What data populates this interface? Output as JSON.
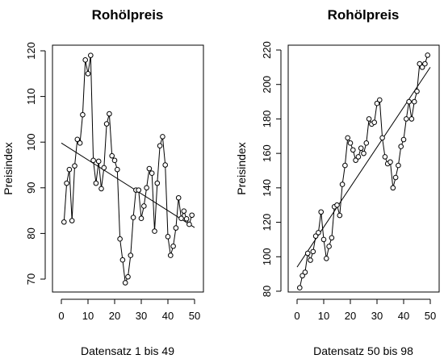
{
  "chart_data": [
    {
      "type": "line",
      "title": "Rohölpreis",
      "xlabel": "Datensatz 1 bis 49",
      "ylabel": "Preisindex",
      "xlim": [
        0,
        50
      ],
      "ylim": [
        70,
        120
      ],
      "xticks": [
        0,
        10,
        20,
        30,
        40,
        50
      ],
      "yticks": [
        70,
        80,
        90,
        100,
        110,
        120
      ],
      "grid": false,
      "series": [
        {
          "markers": "open-circle",
          "x": [
            1,
            2,
            3,
            4,
            5,
            6,
            7,
            8,
            9,
            10,
            11,
            12,
            13,
            14,
            15,
            16,
            17,
            18,
            19,
            20,
            21,
            22,
            23,
            24,
            25,
            26,
            27,
            28,
            29,
            30,
            31,
            32,
            33,
            34,
            35,
            36,
            37,
            38,
            39,
            40,
            41,
            42,
            43,
            44,
            45,
            46,
            47,
            48,
            49
          ],
          "y": [
            82.5,
            91,
            94,
            82.8,
            94.8,
            100.6,
            99.8,
            106,
            118,
            115,
            119,
            96,
            91,
            95.8,
            89.8,
            94.4,
            104,
            106.2,
            97,
            96,
            94,
            78.8,
            74.2,
            69.2,
            70.5,
            75.2,
            83.5,
            89.5,
            89.5,
            83.3,
            86,
            90,
            94.2,
            93.2,
            80.5,
            91,
            99.2,
            101.2,
            95,
            79.3,
            75.2,
            77.2,
            81.2,
            87.8,
            83.3,
            84.9,
            83.2,
            82,
            84
          ]
        }
      ],
      "trendline": {
        "x": [
          0,
          50
        ],
        "y": [
          99.8,
          81.3
        ]
      }
    },
    {
      "type": "line",
      "title": "Rohölpreis",
      "xlabel": "Datensatz 50 bis 98",
      "ylabel": "Preisindex",
      "xlim": [
        0,
        50
      ],
      "ylim": [
        80,
        220
      ],
      "xticks": [
        0,
        10,
        20,
        30,
        40,
        50
      ],
      "yticks": [
        80,
        100,
        120,
        140,
        160,
        180,
        200,
        220
      ],
      "grid": false,
      "series": [
        {
          "markers": "open-circle",
          "x": [
            1,
            2,
            3,
            4,
            5,
            6,
            7,
            8,
            9,
            10,
            11,
            12,
            13,
            14,
            15,
            16,
            17,
            18,
            19,
            20,
            21,
            22,
            23,
            24,
            25,
            26,
            27,
            28,
            29,
            30,
            31,
            32,
            33,
            34,
            35,
            36,
            37,
            38,
            39,
            40,
            41,
            42,
            43,
            44,
            45,
            46,
            47,
            48,
            49
          ],
          "y": [
            82,
            89,
            91,
            102,
            98,
            103,
            112,
            114,
            126,
            110,
            99,
            106,
            111,
            129,
            130,
            124,
            142,
            153,
            169,
            166,
            162,
            156,
            158,
            163,
            160,
            166,
            180,
            177,
            178,
            189,
            191,
            169,
            158,
            154,
            155,
            140,
            146,
            153,
            164,
            168,
            180,
            190,
            180,
            190,
            196,
            212,
            210,
            212,
            217
          ]
        }
      ],
      "trendline": {
        "x": [
          0,
          50
        ],
        "y": [
          94,
          210
        ]
      }
    }
  ]
}
